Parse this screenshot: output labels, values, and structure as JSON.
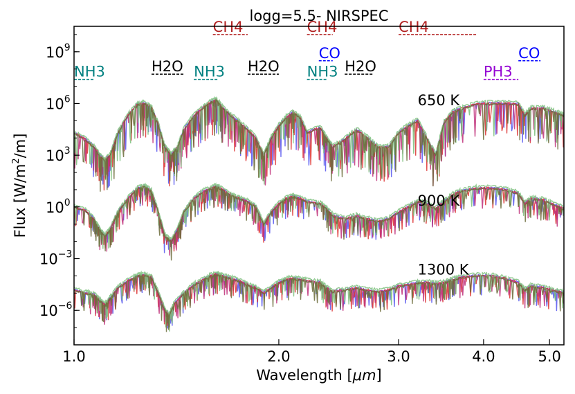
{
  "chart_data": {
    "type": "line",
    "title": "logg=5.5- NIRSPEC",
    "xlabel": "Wavelength [",
    "xlabel_unit": "μm",
    "xlabel_close": "]",
    "ylabel": "Flux [W/m",
    "ylabel_sup": "2",
    "ylabel_close": "/m]",
    "xscale": "log",
    "yscale": "log",
    "xlim": [
      1.0,
      5.25
    ],
    "ylim": [
      1e-08,
      30000000000.0
    ],
    "xticks": [
      {
        "value": 1.0,
        "label": "1.0"
      },
      {
        "value": 2.0,
        "label": "2.0"
      },
      {
        "value": 3.0,
        "label": "3.0"
      },
      {
        "value": 4.0,
        "label": "4.0"
      },
      {
        "value": 5.0,
        "label": "5.0"
      }
    ],
    "yticks": [
      {
        "value": 1000000000.0,
        "base": "10",
        "exp": "9"
      },
      {
        "value": 1000000.0,
        "base": "10",
        "exp": "6"
      },
      {
        "value": 1000.0,
        "base": "10",
        "exp": "3"
      },
      {
        "value": 1.0,
        "base": "10",
        "exp": "0"
      },
      {
        "value": 0.001,
        "base": "10",
        "exp": "−3"
      },
      {
        "value": 1e-06,
        "base": "10",
        "exp": "−6"
      }
    ],
    "temperature_labels": [
      {
        "text": "650 K",
        "x": 3.2,
        "y": 800000.0
      },
      {
        "text": "900 K",
        "x": 3.2,
        "y": 1.2
      },
      {
        "text": "1300 K",
        "x": 3.2,
        "y": 0.00012
      }
    ],
    "molecule_bands": [
      {
        "name": "CH4",
        "color": "#b22222",
        "x0": 1.6,
        "x1": 1.8,
        "level": 10000000000.0
      },
      {
        "name": "CH4",
        "color": "#b22222",
        "x0": 2.2,
        "x1": 2.4,
        "level": 10000000000.0
      },
      {
        "name": "CH4",
        "color": "#b22222",
        "x0": 3.0,
        "x1": 3.9,
        "level": 10000000000.0
      },
      {
        "name": "CO",
        "color": "#0000ff",
        "x0": 2.29,
        "x1": 2.4,
        "level": 300000000.0
      },
      {
        "name": "CO",
        "color": "#0000ff",
        "x0": 4.5,
        "x1": 4.85,
        "level": 300000000.0
      },
      {
        "name": "H2O",
        "color": "#000000",
        "x0": 1.3,
        "x1": 1.45,
        "level": 50000000.0
      },
      {
        "name": "H2O",
        "color": "#000000",
        "x0": 1.8,
        "x1": 2.0,
        "level": 50000000.0
      },
      {
        "name": "H2O",
        "color": "#000000",
        "x0": 2.5,
        "x1": 2.75,
        "level": 50000000.0
      },
      {
        "name": "NH3",
        "color": "#008080",
        "x0": 1.0,
        "x1": 1.07,
        "level": 25000000.0
      },
      {
        "name": "NH3",
        "color": "#008080",
        "x0": 1.5,
        "x1": 1.63,
        "level": 25000000.0
      },
      {
        "name": "NH3",
        "color": "#008080",
        "x0": 2.2,
        "x1": 2.35,
        "level": 25000000.0
      },
      {
        "name": "PH3",
        "color": "#9400d3",
        "x0": 4.0,
        "x1": 4.5,
        "level": 25000000.0
      }
    ],
    "series_colors": [
      {
        "name": "model-blue",
        "color": "#5555ee"
      },
      {
        "name": "model-red",
        "color": "#dd3333"
      },
      {
        "name": "model-magenta",
        "color": "#c0307a"
      },
      {
        "name": "model-green",
        "color": "#7dbf7d"
      },
      {
        "name": "model-olive",
        "color": "#6b6b3a"
      }
    ],
    "spectra": [
      {
        "temperature": "650 K",
        "points": [
          [
            1.0,
            20000.0
          ],
          [
            1.04,
            8000.0
          ],
          [
            1.07,
            3000.0
          ],
          [
            1.09,
            1000.0
          ],
          [
            1.11,
            500.0
          ],
          [
            1.13,
            1000.0
          ],
          [
            1.16,
            20000.0
          ],
          [
            1.2,
            200000.0
          ],
          [
            1.24,
            900000.0
          ],
          [
            1.27,
            1000000.0
          ],
          [
            1.3,
            600000.0
          ],
          [
            1.33,
            60000.0
          ],
          [
            1.36,
            3000.0
          ],
          [
            1.39,
            1000.0
          ],
          [
            1.42,
            3000.0
          ],
          [
            1.45,
            30000.0
          ],
          [
            1.5,
            200000.0
          ],
          [
            1.55,
            600000.0
          ],
          [
            1.59,
            1200000.0
          ],
          [
            1.62,
            1600000.0
          ],
          [
            1.65,
            600000.0
          ],
          [
            1.7,
            200000.0
          ],
          [
            1.75,
            80000.0
          ],
          [
            1.8,
            30000.0
          ],
          [
            1.85,
            10000.0
          ],
          [
            1.9,
            1000.0
          ],
          [
            1.95,
            10000.0
          ],
          [
            2.0,
            50000.0
          ],
          [
            2.05,
            150000.0
          ],
          [
            2.1,
            300000.0
          ],
          [
            2.15,
            150000.0
          ],
          [
            2.2,
            20000.0
          ],
          [
            2.3,
            40000.0
          ],
          [
            2.35,
            10000.0
          ],
          [
            2.4,
            3000.0
          ],
          [
            2.5,
            8000.0
          ],
          [
            2.6,
            30000.0
          ],
          [
            2.7,
            10000.0
          ],
          [
            2.8,
            3000.0
          ],
          [
            2.9,
            3000.0
          ],
          [
            3.0,
            20000.0
          ],
          [
            3.1,
            50000.0
          ],
          [
            3.2,
            100000.0
          ],
          [
            3.3,
            10000.0
          ],
          [
            3.4,
            1000.0
          ],
          [
            3.5,
            80000.0
          ],
          [
            3.6,
            300000.0
          ],
          [
            3.7,
            500000.0
          ],
          [
            3.9,
            900000.0
          ],
          [
            4.1,
            1000000.0
          ],
          [
            4.3,
            1000000.0
          ],
          [
            4.5,
            900000.0
          ],
          [
            4.6,
            200000.0
          ],
          [
            4.7,
            500000.0
          ],
          [
            4.9,
            500000.0
          ],
          [
            5.1,
            300000.0
          ],
          [
            5.25,
            200000.0
          ]
        ]
      },
      {
        "temperature": "900 K",
        "points": [
          [
            1.0,
            1.0
          ],
          [
            1.04,
            0.6
          ],
          [
            1.07,
            0.2
          ],
          [
            1.09,
            0.05
          ],
          [
            1.11,
            0.02
          ],
          [
            1.13,
            0.05
          ],
          [
            1.16,
            0.5
          ],
          [
            1.2,
            3
          ],
          [
            1.24,
            12
          ],
          [
            1.27,
            15
          ],
          [
            1.3,
            8
          ],
          [
            1.33,
            0.5
          ],
          [
            1.36,
            0.02
          ],
          [
            1.39,
            0.01
          ],
          [
            1.42,
            0.05
          ],
          [
            1.45,
            0.5
          ],
          [
            1.5,
            3
          ],
          [
            1.55,
            8
          ],
          [
            1.59,
            12
          ],
          [
            1.62,
            15
          ],
          [
            1.65,
            10
          ],
          [
            1.7,
            5
          ],
          [
            1.75,
            3
          ],
          [
            1.8,
            2
          ],
          [
            1.85,
            1
          ],
          [
            1.9,
            0.1
          ],
          [
            1.95,
            0.5
          ],
          [
            2.0,
            1.5
          ],
          [
            2.05,
            3
          ],
          [
            2.1,
            4
          ],
          [
            2.15,
            3
          ],
          [
            2.2,
            2
          ],
          [
            2.3,
            1.5
          ],
          [
            2.35,
            0.8
          ],
          [
            2.4,
            0.3
          ],
          [
            2.5,
            0.2
          ],
          [
            2.6,
            0.3
          ],
          [
            2.7,
            0.2
          ],
          [
            2.8,
            0.15
          ],
          [
            2.9,
            0.2
          ],
          [
            3.0,
            0.5
          ],
          [
            3.1,
            1
          ],
          [
            3.2,
            2
          ],
          [
            3.3,
            1.5
          ],
          [
            3.4,
            0.8
          ],
          [
            3.5,
            2
          ],
          [
            3.6,
            5
          ],
          [
            3.7,
            8
          ],
          [
            3.9,
            12
          ],
          [
            4.1,
            12
          ],
          [
            4.3,
            10
          ],
          [
            4.5,
            6
          ],
          [
            4.6,
            1.5
          ],
          [
            4.7,
            3
          ],
          [
            4.9,
            2.5
          ],
          [
            5.1,
            1.2
          ],
          [
            5.25,
            0.8
          ]
        ]
      },
      {
        "temperature": "1300 K",
        "points": [
          [
            1.0,
            1.5e-05
          ],
          [
            1.04,
            1e-05
          ],
          [
            1.07,
            8e-06
          ],
          [
            1.09,
            4e-06
          ],
          [
            1.11,
            2e-06
          ],
          [
            1.13,
            5e-06
          ],
          [
            1.16,
            2e-05
          ],
          [
            1.2,
            5e-05
          ],
          [
            1.24,
            0.0001
          ],
          [
            1.27,
            0.00011
          ],
          [
            1.3,
            8e-05
          ],
          [
            1.33,
            1e-05
          ],
          [
            1.36,
            1e-06
          ],
          [
            1.38,
            5e-07
          ],
          [
            1.4,
            2e-06
          ],
          [
            1.45,
            1e-05
          ],
          [
            1.5,
            3e-05
          ],
          [
            1.55,
            6e-05
          ],
          [
            1.59,
            0.0001
          ],
          [
            1.62,
            0.00012
          ],
          [
            1.65,
            0.0001
          ],
          [
            1.7,
            7e-05
          ],
          [
            1.75,
            5e-05
          ],
          [
            1.8,
            3e-05
          ],
          [
            1.85,
            2e-05
          ],
          [
            1.9,
            1e-05
          ],
          [
            1.95,
            2e-05
          ],
          [
            2.0,
            4e-05
          ],
          [
            2.05,
            6e-05
          ],
          [
            2.1,
            7e-05
          ],
          [
            2.15,
            6e-05
          ],
          [
            2.2,
            5e-05
          ],
          [
            2.3,
            4e-05
          ],
          [
            2.35,
            2e-05
          ],
          [
            2.4,
            1.2e-05
          ],
          [
            2.5,
            1.5e-05
          ],
          [
            2.6,
            2e-05
          ],
          [
            2.7,
            1.5e-05
          ],
          [
            2.8,
            1.2e-05
          ],
          [
            2.9,
            1.5e-05
          ],
          [
            3.0,
            2.5e-05
          ],
          [
            3.1,
            3e-05
          ],
          [
            3.2,
            4e-05
          ],
          [
            3.3,
            4e-05
          ],
          [
            3.4,
            3.5e-05
          ],
          [
            3.5,
            4e-05
          ],
          [
            3.6,
            6e-05
          ],
          [
            3.7,
            8e-05
          ],
          [
            3.9,
            0.0001
          ],
          [
            4.1,
            0.0001
          ],
          [
            4.3,
            7e-05
          ],
          [
            4.5,
            4e-05
          ],
          [
            4.6,
            1.5e-05
          ],
          [
            4.7,
            2.5e-05
          ],
          [
            4.9,
            2e-05
          ],
          [
            5.1,
            1.3e-05
          ],
          [
            5.25,
            1e-05
          ]
        ]
      }
    ]
  }
}
